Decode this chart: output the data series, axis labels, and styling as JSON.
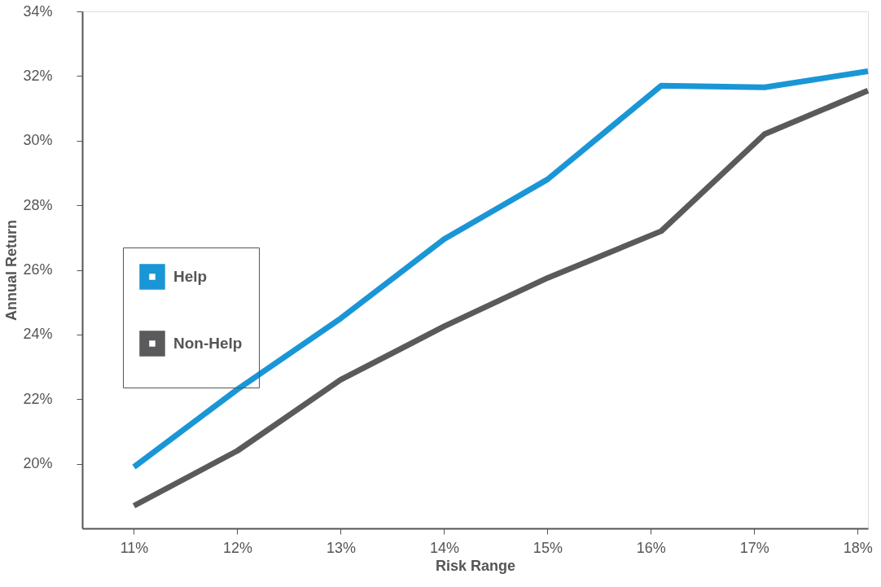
{
  "chart_data": {
    "type": "line",
    "xlabel": "Risk Range",
    "ylabel": "Annual Return",
    "x": [
      11.0,
      12.0,
      13.0,
      14.0,
      15.0,
      16.1,
      17.1,
      18.1
    ],
    "series": [
      {
        "name": "Help",
        "color": "#1a96d6",
        "values": [
          19.9,
          22.3,
          24.5,
          26.95,
          28.8,
          31.7,
          31.65,
          32.15
        ]
      },
      {
        "name": "Non-Help",
        "color": "#5a5a5c",
        "values": [
          18.7,
          20.4,
          22.6,
          24.25,
          25.75,
          27.2,
          30.2,
          31.55
        ]
      }
    ],
    "xlim": [
      10.5,
      18.1
    ],
    "xticks": [
      {
        "value": 11,
        "label": "11%"
      },
      {
        "value": 12,
        "label": "12%"
      },
      {
        "value": 13,
        "label": "13%"
      },
      {
        "value": 14,
        "label": "14%"
      },
      {
        "value": 15,
        "label": "15%"
      },
      {
        "value": 16,
        "label": "16%"
      },
      {
        "value": 17,
        "label": "17%"
      },
      {
        "value": 18,
        "label": "18%"
      }
    ],
    "ylim": [
      18,
      34
    ],
    "yticks": [
      {
        "value": 20,
        "label": "20%"
      },
      {
        "value": 22,
        "label": "22%"
      },
      {
        "value": 24,
        "label": "24%"
      },
      {
        "value": 26,
        "label": "26%"
      },
      {
        "value": 28,
        "label": "28%"
      },
      {
        "value": 30,
        "label": "30%"
      },
      {
        "value": 32,
        "label": "32%"
      },
      {
        "value": 34,
        "label": "34%"
      }
    ],
    "grid": false,
    "legend": "left",
    "marker": "none",
    "line_style": "solid"
  }
}
